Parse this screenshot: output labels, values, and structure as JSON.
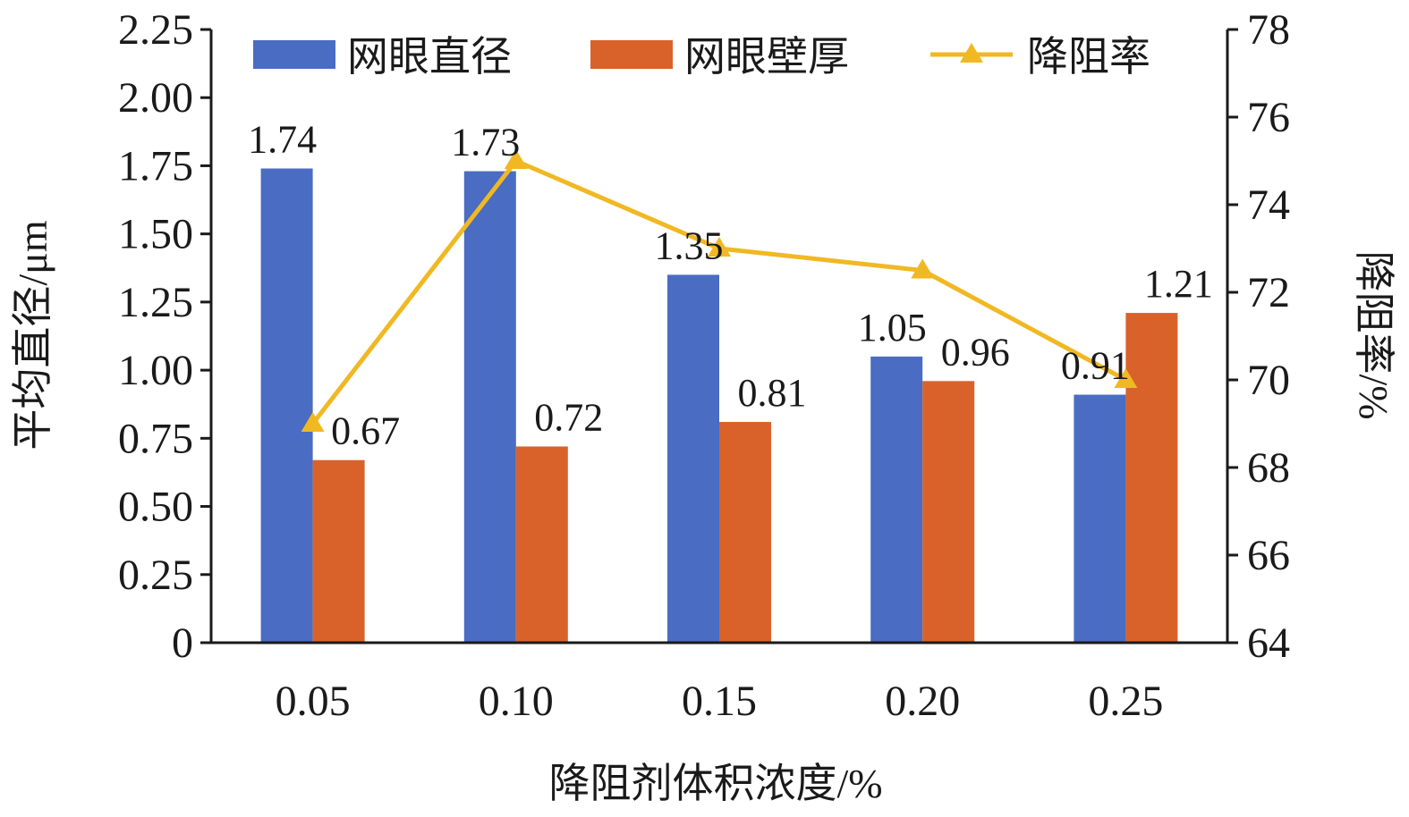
{
  "chart_data": {
    "type": "bar",
    "categories": [
      "0.05",
      "0.10",
      "0.15",
      "0.20",
      "0.25"
    ],
    "xlabel": "降阻剂体积浓度/%",
    "ylabel": "平均直径/μm",
    "y2label": "降阻率/%",
    "ylim": [
      0,
      2.25
    ],
    "y2lim": [
      64,
      78
    ],
    "yticks": [
      "0",
      "0.25",
      "0.50",
      "0.75",
      "1.00",
      "1.25",
      "1.50",
      "1.75",
      "2.00",
      "2.25"
    ],
    "y2ticks": [
      "64",
      "66",
      "68",
      "70",
      "72",
      "74",
      "76",
      "78"
    ],
    "grid": false,
    "legend_position": "top",
    "series": [
      {
        "name": "网眼直径",
        "kind": "bar",
        "axis": "left",
        "color": "#4a6cc2",
        "values": [
          1.74,
          1.73,
          1.35,
          1.05,
          0.91
        ],
        "labels": [
          "1.74",
          "1.73",
          "1.35",
          "1.05",
          "0.91"
        ]
      },
      {
        "name": "网眼壁厚",
        "kind": "bar",
        "axis": "left",
        "color": "#d9622b",
        "values": [
          0.67,
          0.72,
          0.81,
          0.96,
          1.21
        ],
        "labels": [
          "0.67",
          "0.72",
          "0.81",
          "0.96",
          "1.21"
        ]
      },
      {
        "name": "降阻率",
        "kind": "line",
        "axis": "right",
        "color": "#f0b823",
        "marker": "triangle",
        "values": [
          69.0,
          75.0,
          73.0,
          72.5,
          70.0
        ]
      }
    ]
  }
}
